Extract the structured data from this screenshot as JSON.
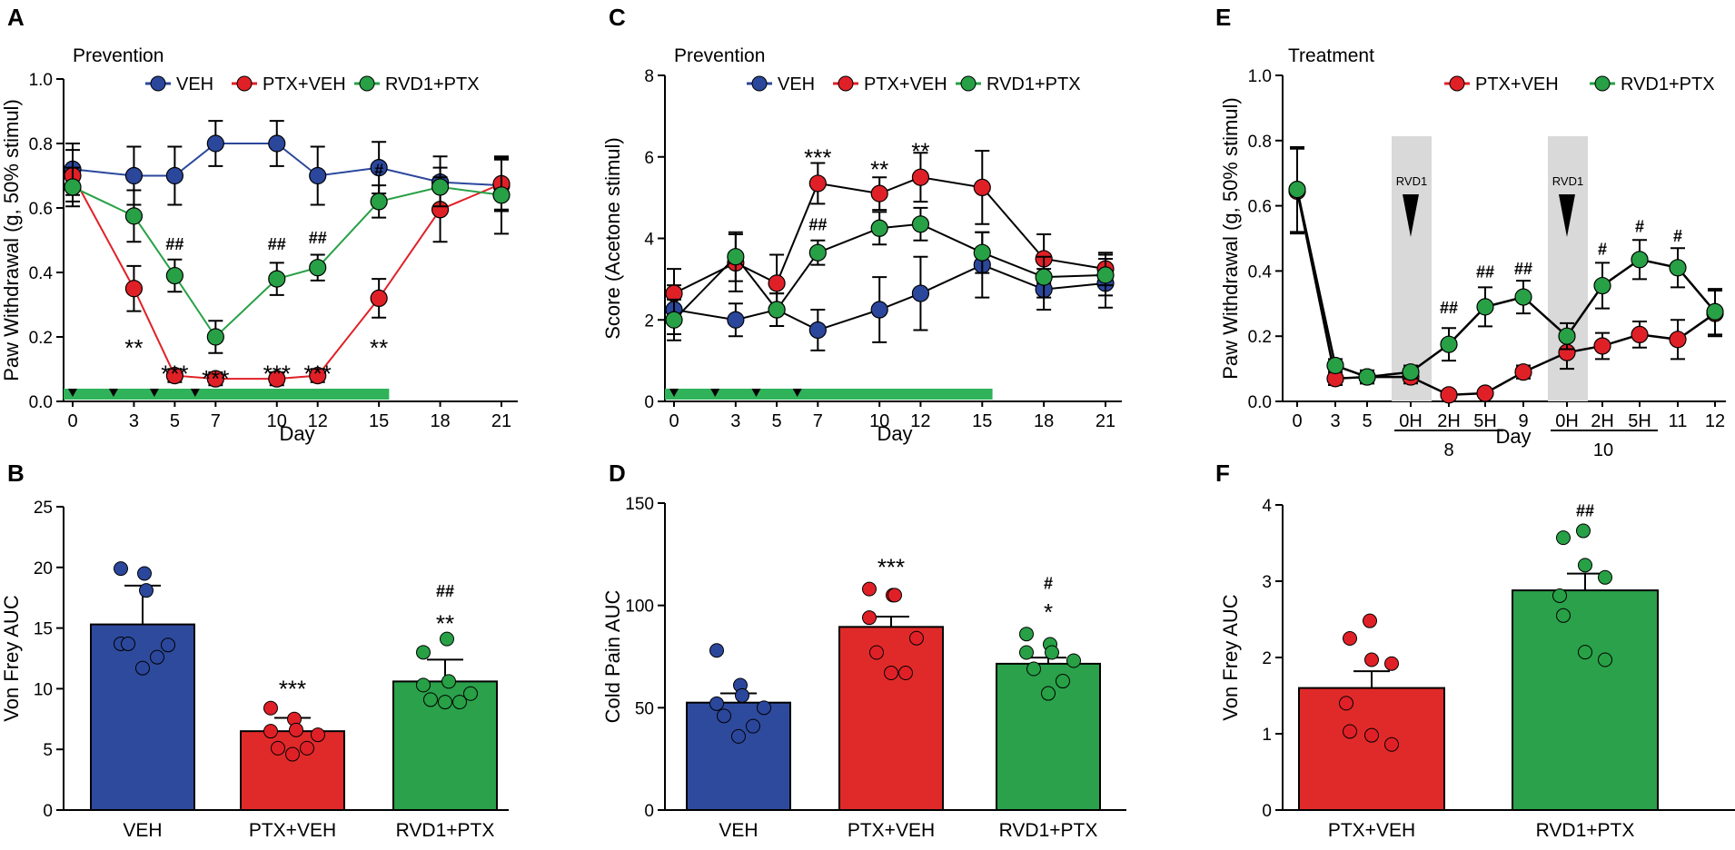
{
  "colors": {
    "veh": "#2b479c",
    "ptx": "#e02027",
    "rvd": "#27a046",
    "bar_veh": "#2e4a9d",
    "bar_ptx": "#e02a2a",
    "bar_rvd": "#2aa14a",
    "bar_gray": "#d9d9d9"
  },
  "chart_data": [
    {
      "panel": "A",
      "type": "line",
      "title": "Prevention",
      "xlabel": "Day",
      "ylabel": "Paw Withdrawal (g, 50% stimul)",
      "ylim": [
        0,
        1.0
      ],
      "yticks": [
        "0.0",
        "0.2",
        "0.4",
        "0.6",
        "0.8",
        "1.0"
      ],
      "xlim": [
        -1,
        22
      ],
      "xticks": [
        "0",
        "3",
        "5",
        "7",
        "10",
        "12",
        "15",
        "18",
        "21"
      ],
      "legend": [
        "VEH",
        "PTX+VEH",
        "RVD1+PTX"
      ],
      "x": [
        0,
        3,
        5,
        7,
        10,
        12,
        15,
        18,
        21
      ],
      "series": [
        {
          "name": "VEH",
          "color_key": "veh",
          "values": [
            0.72,
            0.7,
            0.7,
            0.8,
            0.8,
            0.7,
            0.725,
            0.68,
            0.67
          ],
          "err": [
            0.08,
            0.09,
            0.09,
            0.07,
            0.07,
            0.09,
            0.08,
            0.08,
            0.08
          ]
        },
        {
          "name": "PTX+VEH",
          "color_key": "ptx",
          "values": [
            0.7,
            0.35,
            0.08,
            0.07,
            0.07,
            0.08,
            0.32,
            0.595,
            0.675
          ],
          "err": [
            0.08,
            0.07,
            0.02,
            0.02,
            0.02,
            0.02,
            0.06,
            0.1,
            0.08
          ]
        },
        {
          "name": "RVD1+PTX",
          "color_key": "rvd",
          "values": [
            0.665,
            0.575,
            0.39,
            0.2,
            0.38,
            0.415,
            0.62,
            0.665,
            0.64
          ],
          "err": [
            0.06,
            0.08,
            0.05,
            0.05,
            0.05,
            0.04,
            0.05,
            0.06,
            0.12
          ]
        }
      ],
      "annotations": [
        {
          "text": "**",
          "x": 3,
          "y": 0.18
        },
        {
          "text": "***",
          "x": 5,
          "y": 0.1
        },
        {
          "text": "***",
          "x": 7,
          "y": 0.085
        },
        {
          "text": "***",
          "x": 10,
          "y": 0.1
        },
        {
          "text": "***",
          "x": 12,
          "y": 0.1
        },
        {
          "text": "**",
          "x": 15,
          "y": 0.18
        },
        {
          "text": "##",
          "x": 5,
          "y": 0.47
        },
        {
          "text": "##",
          "x": 10,
          "y": 0.47
        },
        {
          "text": "##",
          "x": 12,
          "y": 0.49
        },
        {
          "text": "#",
          "x": 15,
          "y": 0.7
        }
      ],
      "green_bar_end": 15.5,
      "arrow_days": [
        0,
        2,
        4,
        6
      ]
    },
    {
      "panel": "C",
      "type": "line",
      "title": "Prevention",
      "xlabel": "Day",
      "ylabel": "Score (Acetone stimul)",
      "ylim": [
        0,
        8
      ],
      "yticks": [
        "0",
        "2",
        "4",
        "6",
        "8"
      ],
      "xlim": [
        -1,
        22
      ],
      "xticks": [
        "0",
        "3",
        "5",
        "7",
        "10",
        "12",
        "15",
        "18",
        "21"
      ],
      "legend": [
        "VEH",
        "PTX+VEH",
        "RVD1+PTX"
      ],
      "x": [
        0,
        3,
        5,
        7,
        10,
        12,
        15,
        18,
        21
      ],
      "series": [
        {
          "name": "VEH",
          "color_key": "veh",
          "values": [
            2.25,
            2.0,
            2.25,
            1.75,
            2.25,
            2.65,
            3.35,
            2.75,
            2.9
          ],
          "err": [
            0.6,
            0.4,
            0.4,
            0.5,
            0.8,
            0.9,
            0.8,
            0.5,
            0.6
          ]
        },
        {
          "name": "PTX+VEH",
          "color_key": "ptx",
          "values": [
            2.65,
            3.4,
            2.9,
            5.35,
            5.1,
            5.5,
            5.25,
            3.5,
            3.25
          ],
          "err": [
            0.6,
            0.7,
            0.7,
            0.5,
            0.4,
            0.6,
            0.9,
            0.6,
            0.4
          ]
        },
        {
          "name": "RVD1+PTX",
          "color_key": "rvd",
          "values": [
            2.0,
            3.55,
            2.25,
            3.65,
            4.25,
            4.35,
            3.65,
            3.05,
            3.1
          ],
          "err": [
            0.5,
            0.6,
            0.4,
            0.3,
            0.4,
            0.4,
            0.5,
            0.5,
            0.5
          ]
        }
      ],
      "annotations": [
        {
          "text": "***",
          "x": 7,
          "y": 6.1
        },
        {
          "text": "**",
          "x": 10,
          "y": 5.8
        },
        {
          "text": "**",
          "x": 12,
          "y": 6.25
        },
        {
          "text": "##",
          "x": 7,
          "y": 4.2
        }
      ],
      "green_bar_end": 15.5,
      "arrow_days": [
        0,
        2,
        4,
        6
      ]
    },
    {
      "panel": "E",
      "type": "line",
      "title": "Treatment",
      "xlabel": "Day",
      "ylabel": "Paw Withdrawal (g, 50% stimul)",
      "ylim": [
        0,
        1.0
      ],
      "yticks": [
        "0.0",
        "0.2",
        "0.4",
        "0.6",
        "0.8",
        "1.0"
      ],
      "xticks": [
        "0",
        "3",
        "5",
        "0H",
        "2H",
        "5H",
        "9",
        "0H",
        "2H",
        "5H",
        "11",
        "12"
      ],
      "group_labels": [
        "8",
        "10"
      ],
      "legend": [
        "PTX+VEH",
        "RVD1+PTX"
      ],
      "shade_label": "RVD1",
      "series": [
        {
          "name": "PTX+VEH",
          "color_key": "ptx",
          "values": [
            0.645,
            0.07,
            0.075,
            0.075,
            0.02,
            0.025,
            0.09,
            0.15,
            0.17,
            0.205,
            0.19,
            0.27
          ],
          "err": [
            0.13,
            0.02,
            0.02,
            0.02,
            0.01,
            0.01,
            0.02,
            0.05,
            0.04,
            0.04,
            0.06,
            0.07
          ]
        },
        {
          "name": "RVD1+PTX",
          "color_key": "rvd",
          "values": [
            0.65,
            0.11,
            0.075,
            0.09,
            0.175,
            0.29,
            0.32,
            0.2,
            0.355,
            0.435,
            0.41,
            0.275
          ],
          "err": [
            0.13,
            0.02,
            0.02,
            0.02,
            0.05,
            0.06,
            0.05,
            0.04,
            0.07,
            0.06,
            0.06,
            0.07
          ]
        }
      ],
      "annotations": [
        {
          "text": "##",
          "x": 4,
          "y": 0.27
        },
        {
          "text": "##",
          "x": 5,
          "y": 0.38
        },
        {
          "text": "##",
          "x": 6,
          "y": 0.39
        },
        {
          "text": "#",
          "x": 8,
          "y": 0.45
        },
        {
          "text": "#",
          "x": 9,
          "y": 0.52
        },
        {
          "text": "#",
          "x": 10,
          "y": 0.49
        }
      ]
    },
    {
      "panel": "B",
      "type": "bar",
      "ylabel": "Von Frey AUC",
      "ylim": [
        0,
        25
      ],
      "yticks": [
        "0",
        "5",
        "10",
        "15",
        "20",
        "25"
      ],
      "categories": [
        "VEH",
        "PTX+VEH",
        "RVD1+PTX"
      ],
      "values": [
        15.3,
        6.5,
        10.6
      ],
      "err": [
        3.2,
        1.1,
        1.8
      ],
      "color_keys": [
        "bar_veh",
        "bar_ptx",
        "bar_rvd"
      ],
      "dot_keys": [
        "veh",
        "ptx",
        "rvd"
      ],
      "points": [
        [
          19.9,
          19.5,
          18.1,
          13.7,
          13.6,
          13.7,
          12.6,
          11.7
        ],
        [
          8.4,
          7.5,
          6.6,
          6.5,
          6.2,
          5.1,
          5.1,
          4.6
        ],
        [
          13.0,
          14.1,
          10.6,
          10.3,
          9.6,
          9.1,
          8.9,
          8.9
        ]
      ],
      "annotations": [
        {
          "text": "***",
          "bar": 1,
          "y": 10.2
        },
        {
          "text": "**",
          "bar": 2,
          "y": 15.6
        },
        {
          "text": "##",
          "bar": 2,
          "y": 17.6
        }
      ]
    },
    {
      "panel": "D",
      "type": "bar",
      "ylabel": "Cold Pain AUC",
      "ylim": [
        0,
        150
      ],
      "yticks": [
        "0",
        "50",
        "100",
        "150"
      ],
      "categories": [
        "VEH",
        "PTX+VEH",
        "RVD1+PTX"
      ],
      "values": [
        52.5,
        89.5,
        71.5
      ],
      "err": [
        4.5,
        5,
        3
      ],
      "color_keys": [
        "bar_veh",
        "bar_ptx",
        "bar_rvd"
      ],
      "dot_keys": [
        "veh",
        "ptx",
        "rvd"
      ],
      "points": [
        [
          78,
          61,
          56,
          52,
          50,
          46,
          41,
          36
        ],
        [
          108,
          105,
          105,
          94,
          84,
          77,
          67,
          67
        ],
        [
          86,
          81,
          77,
          77,
          73,
          69,
          63,
          57
        ]
      ],
      "annotations": [
        {
          "text": "***",
          "bar": 1,
          "y": 120
        },
        {
          "text": "*",
          "bar": 2,
          "y": 98
        },
        {
          "text": "#",
          "bar": 2,
          "y": 108
        }
      ]
    },
    {
      "panel": "F",
      "type": "bar",
      "ylabel": "Von Frey AUC",
      "ylim": [
        0,
        4
      ],
      "yticks": [
        "0",
        "1",
        "2",
        "3",
        "4"
      ],
      "categories": [
        "PTX+VEH",
        "RVD1+PTX"
      ],
      "values": [
        1.6,
        2.88
      ],
      "err": [
        0.22,
        0.22
      ],
      "color_keys": [
        "bar_ptx",
        "bar_rvd"
      ],
      "dot_keys": [
        "ptx",
        "rvd"
      ],
      "points": [
        [
          2.48,
          2.25,
          1.97,
          1.92,
          1.4,
          1.03,
          0.98,
          0.86
        ],
        [
          3.66,
          3.57,
          3.21,
          3.05,
          2.81,
          2.55,
          2.07,
          1.97
        ]
      ],
      "annotations": [
        {
          "text": "##",
          "bar": 1,
          "y": 3.85
        }
      ]
    }
  ],
  "panel_letters": [
    "A",
    "B",
    "C",
    "D",
    "E",
    "F"
  ]
}
